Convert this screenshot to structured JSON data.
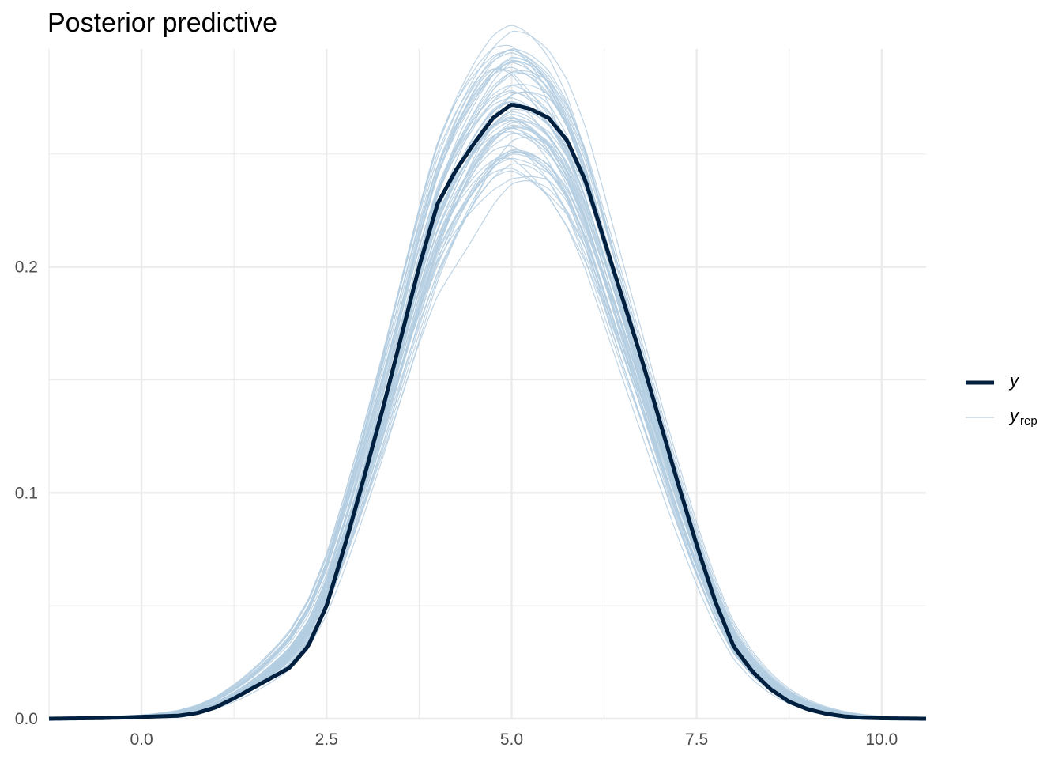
{
  "chart_data": {
    "type": "line",
    "title": "Posterior predictive",
    "xlabel": "",
    "ylabel": "",
    "xlim": [
      -1.25,
      10.6
    ],
    "ylim": [
      0,
      0.2965
    ],
    "x_major_ticks": [
      0.0,
      2.5,
      5.0,
      7.5,
      10.0
    ],
    "x_tick_labels": [
      "0.0",
      "2.5",
      "5.0",
      "7.5",
      "10.0"
    ],
    "x_minor_ticks": [
      -1.25,
      1.25,
      3.75,
      6.25,
      8.75
    ],
    "y_major_ticks": [
      0.0,
      0.1,
      0.2
    ],
    "y_tick_labels": [
      "0.0",
      "0.1",
      "0.2"
    ],
    "y_minor_ticks": [
      0.05,
      0.15,
      0.25
    ],
    "grid": true,
    "legend_position": "right",
    "legend": [
      {
        "key": "y",
        "label": "y",
        "subscript": "",
        "color": "#011f3f",
        "style": "thick"
      },
      {
        "key": "yrep",
        "label": "y",
        "subscript": "rep",
        "color": "#b3cde0",
        "style": "thin"
      }
    ],
    "series": [
      {
        "name": "y",
        "color": "#011f3f",
        "x": [
          -1.25,
          -0.5,
          0.0,
          0.5,
          0.75,
          1.0,
          1.25,
          1.5,
          1.75,
          2.0,
          2.25,
          2.5,
          2.75,
          3.0,
          3.25,
          3.5,
          3.75,
          4.0,
          4.25,
          4.5,
          4.75,
          5.0,
          5.25,
          5.5,
          5.75,
          6.0,
          6.25,
          6.5,
          6.75,
          7.0,
          7.25,
          7.5,
          7.75,
          8.0,
          8.25,
          8.5,
          8.75,
          9.0,
          9.25,
          9.5,
          9.75,
          10.0,
          10.25,
          10.6
        ],
        "y": [
          0.0,
          0.0003,
          0.0008,
          0.0013,
          0.0025,
          0.005,
          0.009,
          0.0135,
          0.018,
          0.0225,
          0.032,
          0.05,
          0.077,
          0.106,
          0.136,
          0.168,
          0.2,
          0.228,
          0.243,
          0.255,
          0.266,
          0.272,
          0.27,
          0.266,
          0.256,
          0.238,
          0.212,
          0.186,
          0.16,
          0.132,
          0.104,
          0.077,
          0.052,
          0.032,
          0.021,
          0.013,
          0.0075,
          0.0042,
          0.0022,
          0.001,
          0.0004,
          0.0002,
          0.0001,
          0.0
        ]
      }
    ],
    "replicates": {
      "name": "y_rep",
      "count": 60,
      "color": "#b3cde0",
      "peak_range": [
        0.244,
        0.299
      ],
      "mean_range": [
        4.85,
        5.15
      ],
      "sd_range": [
        1.42,
        1.6
      ]
    }
  }
}
